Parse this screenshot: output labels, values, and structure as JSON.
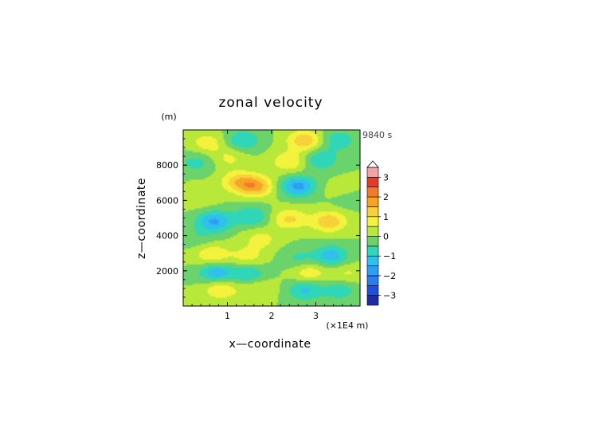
{
  "chart_data": {
    "type": "heatmap",
    "title": "zonal velocity",
    "xlabel": "x—coordinate",
    "ylabel": "z—coordinate",
    "x_unit": "(×1E4 m)",
    "y_unit": "(m)",
    "time_label": "9840 s",
    "xlim": [
      0,
      4
    ],
    "ylim": [
      0,
      10000
    ],
    "x_ticks": [
      1,
      2,
      3
    ],
    "y_ticks": [
      2000,
      4000,
      6000,
      8000
    ],
    "colorbar": {
      "ticks": [
        3,
        2,
        1,
        0,
        -1,
        -2,
        -3
      ],
      "levels": [
        -3.5,
        -3,
        -2.5,
        -2,
        -1.5,
        -1,
        -0.5,
        0,
        0.5,
        1,
        1.5,
        2,
        2.5,
        3,
        3.5
      ],
      "colors": [
        "#1e2aa8",
        "#1f4fe0",
        "#2a7df0",
        "#2e9ef4",
        "#2fc0ee",
        "#2fd6b8",
        "#6bd36b",
        "#b8e83a",
        "#f3f23c",
        "#f7d03a",
        "#f5a524",
        "#f07a2a",
        "#e83a2a",
        "#f0a4a4",
        "#ffffff"
      ]
    },
    "anomalies": [
      {
        "x": 0.55,
        "z": 9250,
        "value": 0.8
      },
      {
        "x": 1.35,
        "z": 9400,
        "value": -1.0
      },
      {
        "x": 2.75,
        "z": 9400,
        "value": 1.4
      },
      {
        "x": 3.5,
        "z": 9400,
        "value": -0.9
      },
      {
        "x": 0.3,
        "z": 8150,
        "value": -0.7
      },
      {
        "x": 1.05,
        "z": 8400,
        "value": 0.6
      },
      {
        "x": 2.4,
        "z": 8200,
        "value": 1.0
      },
      {
        "x": 3.1,
        "z": 8300,
        "value": -1.0
      },
      {
        "x": 1.25,
        "z": 7050,
        "value": 1.2
      },
      {
        "x": 1.65,
        "z": 6800,
        "value": 1.6
      },
      {
        "x": 2.6,
        "z": 6800,
        "value": -1.7
      },
      {
        "x": 3.6,
        "z": 6500,
        "value": 0.6
      },
      {
        "x": 0.35,
        "z": 6200,
        "value": 0.5
      },
      {
        "x": 3.7,
        "z": 6200,
        "value": -0.6
      },
      {
        "x": 0.7,
        "z": 4800,
        "value": -1.6
      },
      {
        "x": 1.55,
        "z": 5100,
        "value": -1.0
      },
      {
        "x": 2.4,
        "z": 4950,
        "value": 1.1
      },
      {
        "x": 3.3,
        "z": 4800,
        "value": 1.4
      },
      {
        "x": 0.3,
        "z": 3900,
        "value": -0.4
      },
      {
        "x": 1.75,
        "z": 3800,
        "value": 0.7
      },
      {
        "x": 0.65,
        "z": 2900,
        "value": 1.0
      },
      {
        "x": 1.45,
        "z": 2800,
        "value": 0.7
      },
      {
        "x": 2.6,
        "z": 2700,
        "value": -0.6
      },
      {
        "x": 3.35,
        "z": 2850,
        "value": -1.3
      },
      {
        "x": 0.75,
        "z": 1900,
        "value": -1.4
      },
      {
        "x": 1.5,
        "z": 1800,
        "value": -1.0
      },
      {
        "x": 2.85,
        "z": 1900,
        "value": 0.9
      },
      {
        "x": 3.7,
        "z": 1850,
        "value": 0.6
      },
      {
        "x": 0.85,
        "z": 950,
        "value": 1.0
      },
      {
        "x": 1.7,
        "z": 1050,
        "value": 0.6
      },
      {
        "x": 2.75,
        "z": 900,
        "value": -1.1
      },
      {
        "x": 3.55,
        "z": 900,
        "value": -0.8
      }
    ]
  }
}
